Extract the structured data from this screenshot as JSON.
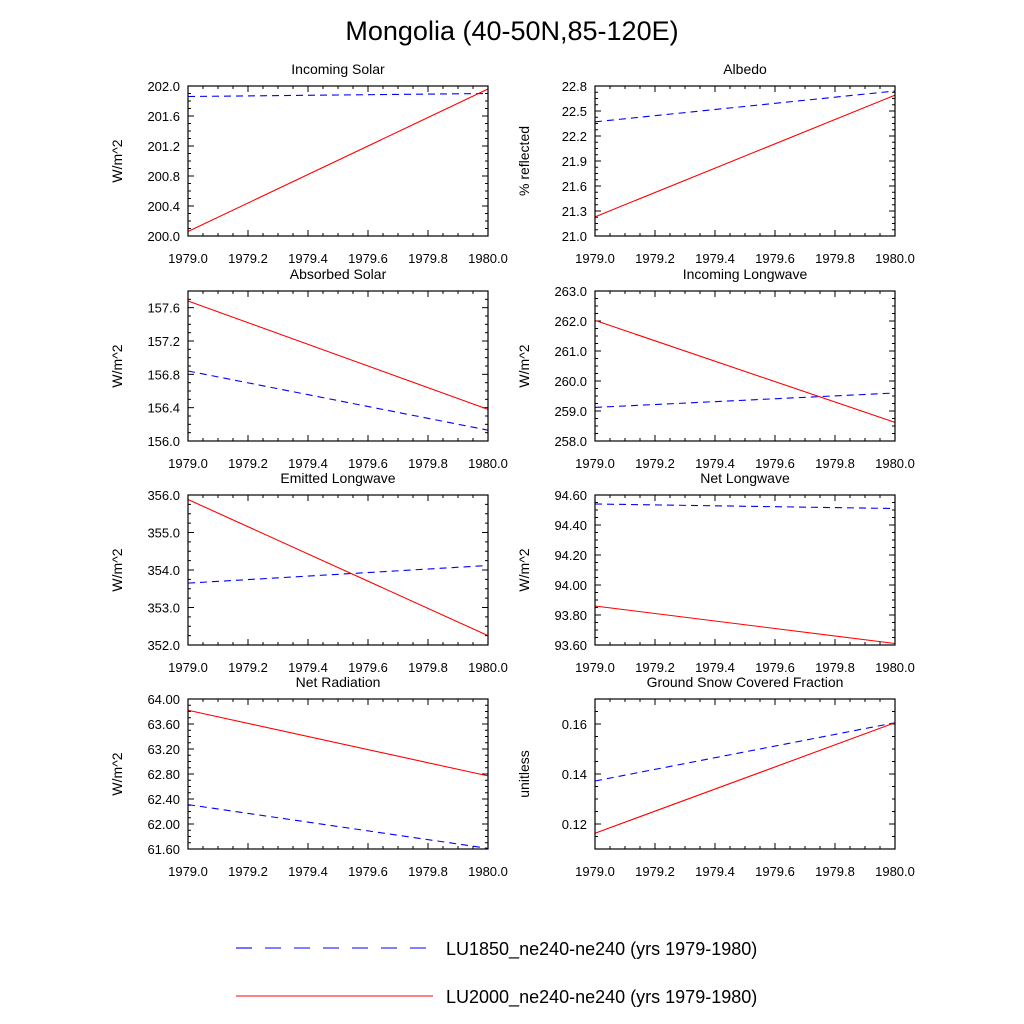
{
  "figure": {
    "title": "Mongolia (40-50N,85-120E)",
    "colors": {
      "LU1850": "#0000ff",
      "LU2000": "#ff0000"
    },
    "legend": [
      {
        "label": "LU1850_ne240-ne240 (yrs 1979-1980)",
        "color": "#0000ff",
        "style": "dashed"
      },
      {
        "label": "LU2000_ne240-ne240 (yrs 1979-1980)",
        "color": "#ff0000",
        "style": "solid"
      }
    ]
  },
  "chart_data": [
    {
      "type": "line",
      "title": "Incoming Solar",
      "ylabel": "W/m^2",
      "xlim": [
        1979.0,
        1980.0
      ],
      "ylim": [
        200.0,
        202.0
      ],
      "xticks": [
        "1979.0",
        "1979.2",
        "1979.4",
        "1979.6",
        "1979.8",
        "1980.0"
      ],
      "yticks": [
        "200.0",
        "200.4",
        "200.8",
        "201.2",
        "201.6",
        "202.0"
      ],
      "series": [
        {
          "name": "LU1850_ne240-ne240 (yrs 1979-1980)",
          "x": [
            1979.0,
            1980.0
          ],
          "y": [
            201.86,
            201.9
          ]
        },
        {
          "name": "LU2000_ne240-ne240 (yrs 1979-1980)",
          "x": [
            1979.0,
            1980.0
          ],
          "y": [
            200.06,
            201.96
          ]
        }
      ]
    },
    {
      "type": "line",
      "title": "Albedo",
      "ylabel": "% reflected",
      "xlim": [
        1979.0,
        1980.0
      ],
      "ylim": [
        21.0,
        22.8
      ],
      "xticks": [
        "1979.0",
        "1979.2",
        "1979.4",
        "1979.6",
        "1979.8",
        "1980.0"
      ],
      "yticks": [
        "21.0",
        "21.3",
        "21.6",
        "21.9",
        "22.2",
        "22.5",
        "22.8"
      ],
      "series": [
        {
          "name": "LU1850_ne240-ne240 (yrs 1979-1980)",
          "x": [
            1979.0,
            1980.0
          ],
          "y": [
            22.37,
            22.74
          ]
        },
        {
          "name": "LU2000_ne240-ne240 (yrs 1979-1980)",
          "x": [
            1979.0,
            1980.0
          ],
          "y": [
            21.23,
            22.69
          ]
        }
      ]
    },
    {
      "type": "line",
      "title": "Absorbed Solar",
      "ylabel": "W/m^2",
      "xlim": [
        1979.0,
        1980.0
      ],
      "ylim": [
        156.0,
        157.8
      ],
      "xticks": [
        "1979.0",
        "1979.2",
        "1979.4",
        "1979.6",
        "1979.8",
        "1980.0"
      ],
      "yticks": [
        "156.0",
        "156.4",
        "156.8",
        "157.2",
        "157.6"
      ],
      "series": [
        {
          "name": "LU1850_ne240-ne240 (yrs 1979-1980)",
          "x": [
            1979.0,
            1980.0
          ],
          "y": [
            156.84,
            156.13
          ]
        },
        {
          "name": "LU2000_ne240-ne240 (yrs 1979-1980)",
          "x": [
            1979.0,
            1980.0
          ],
          "y": [
            157.68,
            156.38
          ]
        }
      ]
    },
    {
      "type": "line",
      "title": "Incoming Longwave",
      "ylabel": "W/m^2",
      "xlim": [
        1979.0,
        1980.0
      ],
      "ylim": [
        258.0,
        263.0
      ],
      "xticks": [
        "1979.0",
        "1979.2",
        "1979.4",
        "1979.6",
        "1979.8",
        "1980.0"
      ],
      "yticks": [
        "258.0",
        "259.0",
        "260.0",
        "261.0",
        "262.0",
        "263.0"
      ],
      "series": [
        {
          "name": "LU1850_ne240-ne240 (yrs 1979-1980)",
          "x": [
            1979.0,
            1980.0
          ],
          "y": [
            259.12,
            259.6
          ]
        },
        {
          "name": "LU2000_ne240-ne240 (yrs 1979-1980)",
          "x": [
            1979.0,
            1980.0
          ],
          "y": [
            262.02,
            258.62
          ]
        }
      ]
    },
    {
      "type": "line",
      "title": "Emitted Longwave",
      "ylabel": "W/m^2",
      "xlim": [
        1979.0,
        1980.0
      ],
      "ylim": [
        352.0,
        356.0
      ],
      "xticks": [
        "1979.0",
        "1979.2",
        "1979.4",
        "1979.6",
        "1979.8",
        "1980.0"
      ],
      "yticks": [
        "352.0",
        "353.0",
        "354.0",
        "355.0",
        "356.0"
      ],
      "series": [
        {
          "name": "LU1850_ne240-ne240 (yrs 1979-1980)",
          "x": [
            1979.0,
            1980.0
          ],
          "y": [
            353.65,
            354.12
          ]
        },
        {
          "name": "LU2000_ne240-ne240 (yrs 1979-1980)",
          "x": [
            1979.0,
            1980.0
          ],
          "y": [
            355.88,
            352.25
          ]
        }
      ]
    },
    {
      "type": "line",
      "title": "Net Longwave",
      "ylabel": "W/m^2",
      "xlim": [
        1979.0,
        1980.0
      ],
      "ylim": [
        93.6,
        94.6
      ],
      "xticks": [
        "1979.0",
        "1979.2",
        "1979.4",
        "1979.6",
        "1979.8",
        "1980.0"
      ],
      "yticks": [
        "93.60",
        "93.80",
        "94.00",
        "94.20",
        "94.40",
        "94.60"
      ],
      "series": [
        {
          "name": "LU1850_ne240-ne240 (yrs 1979-1980)",
          "x": [
            1979.0,
            1980.0
          ],
          "y": [
            94.54,
            94.51
          ]
        },
        {
          "name": "LU2000_ne240-ne240 (yrs 1979-1980)",
          "x": [
            1979.0,
            1980.0
          ],
          "y": [
            93.86,
            93.61
          ]
        }
      ]
    },
    {
      "type": "line",
      "title": "Net Radiation",
      "ylabel": "W/m^2",
      "xlim": [
        1979.0,
        1980.0
      ],
      "ylim": [
        61.6,
        64.0
      ],
      "xticks": [
        "1979.0",
        "1979.2",
        "1979.4",
        "1979.6",
        "1979.8",
        "1980.0"
      ],
      "yticks": [
        "61.60",
        "62.00",
        "62.40",
        "62.80",
        "63.20",
        "63.60",
        "64.00"
      ],
      "series": [
        {
          "name": "LU1850_ne240-ne240 (yrs 1979-1980)",
          "x": [
            1979.0,
            1980.0
          ],
          "y": [
            62.31,
            61.61
          ]
        },
        {
          "name": "LU2000_ne240-ne240 (yrs 1979-1980)",
          "x": [
            1979.0,
            1980.0
          ],
          "y": [
            63.82,
            62.77
          ]
        }
      ]
    },
    {
      "type": "line",
      "title": "Ground Snow Covered Fraction",
      "ylabel": "unitless",
      "xlim": [
        1979.0,
        1980.0
      ],
      "ylim": [
        0.11,
        0.17
      ],
      "xticks": [
        "1979.0",
        "1979.2",
        "1979.4",
        "1979.6",
        "1979.8",
        "1980.0"
      ],
      "yticks": [
        "0.12",
        "0.14",
        "0.16"
      ],
      "series": [
        {
          "name": "LU1850_ne240-ne240 (yrs 1979-1980)",
          "x": [
            1979.0,
            1980.0
          ],
          "y": [
            0.1372,
            0.1605
          ]
        },
        {
          "name": "LU2000_ne240-ne240 (yrs 1979-1980)",
          "x": [
            1979.0,
            1980.0
          ],
          "y": [
            0.1163,
            0.1605
          ]
        }
      ]
    }
  ]
}
